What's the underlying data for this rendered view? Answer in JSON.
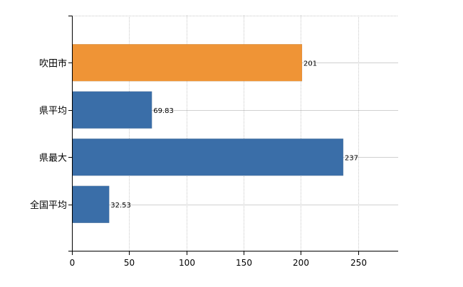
{
  "chart_data": {
    "type": "bar",
    "orientation": "horizontal",
    "categories": [
      "吹田市",
      "県平均",
      "県最大",
      "全国平均"
    ],
    "values": [
      201,
      69.83,
      237,
      32.53
    ],
    "value_labels": [
      "201",
      "69.83",
      "237",
      "32.53"
    ],
    "bar_colors": [
      "#ef9436",
      "#3a6ea8",
      "#3a6ea8",
      "#3a6ea8"
    ],
    "x_ticks": [
      0,
      50,
      100,
      150,
      200,
      250
    ],
    "xlim": [
      0,
      285
    ],
    "title": "",
    "xlabel": "",
    "ylabel": "",
    "grid": true,
    "legend": "none"
  }
}
